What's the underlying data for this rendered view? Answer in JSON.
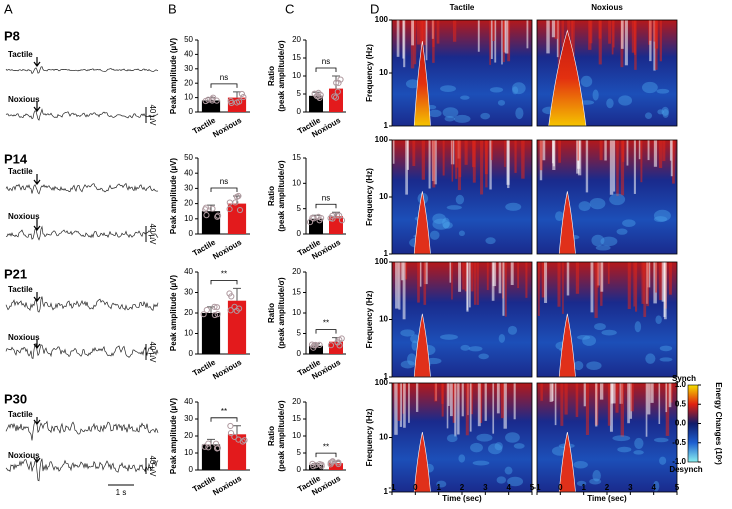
{
  "panels": [
    "A",
    "B",
    "C",
    "D"
  ],
  "traces": {
    "rows": [
      {
        "age": "P8",
        "labels": [
          "Tactile",
          "Noxious"
        ]
      },
      {
        "age": "P14",
        "labels": [
          "Tactile",
          "Noxious"
        ]
      },
      {
        "age": "P21",
        "labels": [
          "Tactile",
          "Noxious"
        ]
      },
      {
        "age": "P30",
        "labels": [
          "Tactile",
          "Noxious"
        ]
      }
    ],
    "scale_amplitude": "40 µV",
    "scale_time": "1 s"
  },
  "chart_data": [
    {
      "type": "bar",
      "ylabel": [
        "Peak amplitude (µV)"
      ],
      "categories": [
        "Tactile",
        "Noxious"
      ],
      "values": [
        8,
        10
      ],
      "errors": [
        2,
        4
      ],
      "colors": [
        "#000000",
        "#e31a1c"
      ],
      "ylim": [
        0,
        50
      ],
      "yticks": [
        0,
        10,
        20,
        30,
        40,
        50
      ],
      "significance": "ns"
    },
    {
      "type": "bar",
      "ylabel": [
        "Ratio",
        "(peak amplitude/σ)"
      ],
      "categories": [
        "Tactile",
        "Noxious"
      ],
      "values": [
        4.5,
        6.5
      ],
      "errors": [
        1,
        3.5
      ],
      "colors": [
        "#000000",
        "#e31a1c"
      ],
      "ylim": [
        0,
        20
      ],
      "yticks": [
        0,
        5,
        10,
        15,
        20
      ],
      "significance": "ns"
    },
    {
      "type": "bar",
      "ylabel": [
        "Peak amplitude (µV)"
      ],
      "categories": [
        "Tactile",
        "Noxious"
      ],
      "values": [
        15,
        20
      ],
      "errors": [
        4,
        5
      ],
      "colors": [
        "#000000",
        "#e31a1c"
      ],
      "ylim": [
        0,
        50
      ],
      "yticks": [
        0,
        10,
        20,
        30,
        40,
        50
      ],
      "significance": "ns"
    },
    {
      "type": "bar",
      "ylabel": [
        "Ratio",
        "(peak amplitude/σ)"
      ],
      "categories": [
        "Tactile",
        "Noxious"
      ],
      "values": [
        3,
        3.5
      ],
      "errors": [
        0.7,
        0.8
      ],
      "colors": [
        "#000000",
        "#e31a1c"
      ],
      "ylim": [
        0,
        15
      ],
      "yticks": [
        0,
        5,
        10,
        15
      ],
      "significance": "ns"
    },
    {
      "type": "bar",
      "ylabel": [
        "Peak amplitude (µV)"
      ],
      "categories": [
        "Tactile",
        "Noxious"
      ],
      "values": [
        20,
        26
      ],
      "errors": [
        3,
        6
      ],
      "colors": [
        "#000000",
        "#e31a1c"
      ],
      "ylim": [
        0,
        40
      ],
      "yticks": [
        0,
        10,
        20,
        30,
        40
      ],
      "significance": "**"
    },
    {
      "type": "bar",
      "ylabel": [
        "Ratio",
        "(peak amplitude/σ)"
      ],
      "categories": [
        "Tactile",
        "Noxious"
      ],
      "values": [
        2,
        3
      ],
      "errors": [
        0.5,
        1
      ],
      "colors": [
        "#000000",
        "#e31a1c"
      ],
      "ylim": [
        0,
        20
      ],
      "yticks": [
        0,
        5,
        10,
        15,
        20
      ],
      "significance": "**"
    },
    {
      "type": "bar",
      "ylabel": [
        "Peak amplitude (µV)"
      ],
      "categories": [
        "Tactile",
        "Noxious"
      ],
      "values": [
        15,
        21
      ],
      "errors": [
        3,
        5
      ],
      "colors": [
        "#000000",
        "#e31a1c"
      ],
      "ylim": [
        0,
        40
      ],
      "yticks": [
        0,
        10,
        20,
        30,
        40
      ],
      "significance": "**"
    },
    {
      "type": "bar",
      "ylabel": [
        "Ratio",
        "(peak amplitude/σ)"
      ],
      "categories": [
        "Tactile",
        "Noxious"
      ],
      "values": [
        1.5,
        2
      ],
      "errors": [
        0.4,
        0.6
      ],
      "colors": [
        "#000000",
        "#e31a1c"
      ],
      "ylim": [
        0,
        20
      ],
      "yticks": [
        0,
        5,
        10,
        15,
        20
      ],
      "significance": "**"
    }
  ],
  "spectrogram": {
    "columns": [
      "Tactile",
      "Noxious"
    ],
    "ylabel": "Frequency (Hz)",
    "xlabel": "Time (sec)",
    "xlim": [
      -1,
      5
    ],
    "xticks": [
      -1,
      0,
      1,
      2,
      3,
      4,
      5
    ],
    "ylim": [
      1,
      100
    ],
    "yticks": [
      1,
      10,
      100
    ],
    "log_y": true,
    "colorbar": {
      "lim": [
        -1,
        1
      ],
      "ticks": [
        {
          "value": -1,
          "label": "-1.0"
        },
        -0.5,
        {
          "value": 0,
          "label": "0.0"
        },
        0.5,
        {
          "value": 1,
          "label": "1.0"
        }
      ],
      "top": "Synch",
      "bottom": "Desynch",
      "label": "Energy Changes (10ˣ)"
    }
  }
}
